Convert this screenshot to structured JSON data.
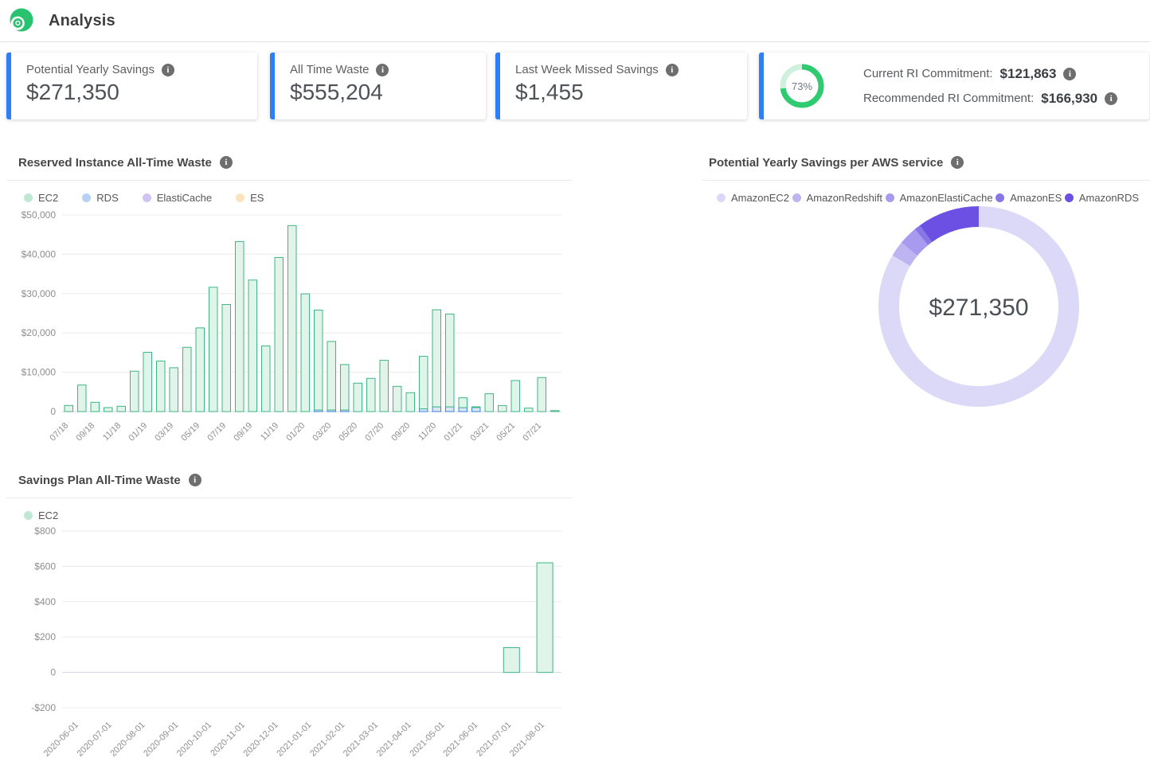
{
  "header": {
    "title": "Analysis"
  },
  "cards": [
    {
      "label": "Potential Yearly Savings",
      "value": "$271,350"
    },
    {
      "label": "All Time Waste",
      "value": "$555,204"
    },
    {
      "label": "Last Week Missed Savings",
      "value": "$1,455"
    }
  ],
  "commitment_card": {
    "gauge_percent": 73,
    "gauge_label": "73%",
    "rows": [
      {
        "label": "Current RI Commitment:",
        "value": "$121,863"
      },
      {
        "label": "Recommended RI Commitment:",
        "value": "$166,930"
      }
    ]
  },
  "colors": {
    "accent_blue": "#2e7ef7",
    "gauge_green": "#2ecb71",
    "gauge_track": "#cff0dc",
    "grid_line": "#ebebeb",
    "axis_line": "#ccd4e8",
    "axis_text": "#8e8e8e"
  },
  "chart_data": [
    {
      "type": "bar",
      "title": "Reserved Instance All-Time Waste",
      "stacked": true,
      "ylim": [
        0,
        50000
      ],
      "yticks": [
        {
          "label": "$50,000",
          "value": 50000
        },
        {
          "label": "$40,000",
          "value": 40000
        },
        {
          "label": "$30,000",
          "value": 30000
        },
        {
          "label": "$20,000",
          "value": 20000
        },
        {
          "label": "$10,000",
          "value": 10000
        },
        {
          "label": "0",
          "value": 0
        }
      ],
      "tick_every": 2,
      "categories": [
        "07/18",
        "08/18",
        "09/18",
        "10/18",
        "11/18",
        "12/18",
        "01/19",
        "02/19",
        "03/19",
        "04/19",
        "05/19",
        "06/19",
        "07/19",
        "08/19",
        "09/19",
        "10/19",
        "11/19",
        "12/19",
        "01/20",
        "02/20",
        "03/20",
        "04/20",
        "05/20",
        "06/20",
        "07/20",
        "08/20",
        "09/20",
        "10/20",
        "11/20",
        "12/20",
        "01/21",
        "02/21",
        "03/21",
        "04/21",
        "05/21",
        "06/21",
        "07/21",
        "08/21"
      ],
      "series": [
        {
          "name": "EC2",
          "legend_color": "#bfe7d2",
          "stroke": "#3eb683",
          "fill": "#e1f4ea",
          "values": [
            1550,
            6750,
            2360,
            1010,
            1350,
            10270,
            15070,
            12840,
            11150,
            16350,
            21280,
            31620,
            27230,
            43240,
            33450,
            16690,
            39190,
            47300,
            29930,
            25400,
            17440,
            11560,
            7230,
            8450,
            13040,
            6420,
            4800,
            13350,
            24680,
            23600,
            2510,
            120,
            4530,
            1550,
            7900,
            880,
            8650,
            250
          ]
        },
        {
          "name": "RDS",
          "legend_color": "#b7d1f5",
          "stroke": "#3f7fdd",
          "fill": "#d8e6f8",
          "values": [
            0,
            0,
            0,
            0,
            0,
            0,
            0,
            0,
            0,
            0,
            0,
            0,
            0,
            0,
            0,
            0,
            0,
            0,
            0,
            400,
            400,
            400,
            0,
            0,
            0,
            0,
            0,
            700,
            1200,
            1200,
            1000,
            1100,
            0,
            0,
            0,
            0,
            0,
            0
          ]
        },
        {
          "name": "ElastiCache",
          "legend_color": "#cfc4f4",
          "stroke": "#8d7ce8",
          "fill": "#e7e1fa",
          "values": [
            0,
            0,
            0,
            0,
            0,
            0,
            0,
            0,
            0,
            0,
            0,
            0,
            0,
            0,
            0,
            0,
            0,
            0,
            0,
            0,
            0,
            0,
            0,
            0,
            0,
            0,
            0,
            0,
            0,
            0,
            0,
            0,
            0,
            0,
            0,
            0,
            0,
            0
          ]
        },
        {
          "name": "ES",
          "legend_color": "#fce3c0",
          "stroke": "#f0b35c",
          "fill": "#fdf0da",
          "values": [
            0,
            0,
            0,
            0,
            0,
            0,
            0,
            0,
            0,
            0,
            0,
            0,
            0,
            0,
            0,
            0,
            0,
            0,
            0,
            0,
            0,
            0,
            0,
            0,
            0,
            0,
            0,
            0,
            0,
            0,
            0,
            0,
            0,
            0,
            0,
            0,
            0,
            0
          ]
        }
      ]
    },
    {
      "type": "pie",
      "title": "Potential Yearly Savings per AWS service",
      "center_label": "$271,350",
      "segments": [
        {
          "name": "AmazonEC2",
          "percent": 83.5,
          "color": "#dcd8f7"
        },
        {
          "name": "AmazonRedshift",
          "percent": 2.5,
          "color": "#beb4f2"
        },
        {
          "name": "AmazonElastiCache",
          "percent": 3,
          "color": "#a89aee"
        },
        {
          "name": "AmazonES",
          "percent": 1,
          "color": "#8677e6"
        },
        {
          "name": "AmazonRDS",
          "percent": 10,
          "color": "#6b50e3"
        }
      ]
    },
    {
      "type": "bar",
      "title": "Savings Plan All-Time Waste",
      "stacked": false,
      "ylim": [
        -200,
        800
      ],
      "yticks": [
        {
          "label": "$800",
          "value": 800
        },
        {
          "label": "$600",
          "value": 600
        },
        {
          "label": "$400",
          "value": 400
        },
        {
          "label": "$200",
          "value": 200
        },
        {
          "label": "0",
          "value": 0
        },
        {
          "label": "-$200",
          "value": -200
        }
      ],
      "tick_every": 1,
      "categories": [
        "2020-06-01",
        "2020-07-01",
        "2020-08-01",
        "2020-09-01",
        "2020-10-01",
        "2020-11-01",
        "2020-12-01",
        "2021-01-01",
        "2021-02-01",
        "2021-03-01",
        "2021-04-01",
        "2021-05-01",
        "2021-06-01",
        "2021-07-01",
        "2021-08-01"
      ],
      "series": [
        {
          "name": "EC2",
          "legend_color": "#bfe7d2",
          "stroke": "#3eb683",
          "fill": "#e1f4ea",
          "values": [
            0,
            0,
            0,
            0,
            0,
            0,
            0,
            0,
            0,
            0,
            0,
            0,
            0,
            140,
            620
          ]
        }
      ]
    }
  ]
}
